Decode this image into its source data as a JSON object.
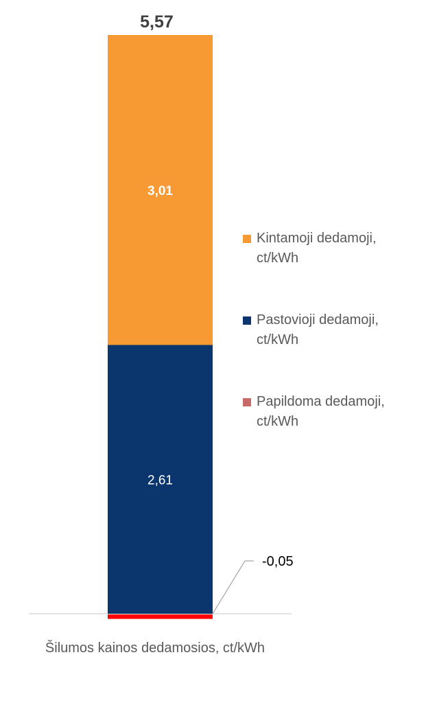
{
  "chart_data": {
    "type": "bar",
    "stacked": true,
    "categories": [
      "Šilumos kainos dedamosios, ct/kWh"
    ],
    "xlabel": "Šilumos kainos dedamosios, ct/kWh",
    "total_label": "5,57",
    "total": 5.57,
    "series": [
      {
        "name": "Kintamoji dedamoji, ct/kWh",
        "line1": "Kintamoji dedamoji,",
        "line2": "ct/kWh",
        "values": [
          3.01
        ],
        "label": "3,01",
        "color": "#F79A33",
        "legend_color": "#F79A33"
      },
      {
        "name": "Pastovioji dedamoji, ct/kWh",
        "line1": "Pastovioji dedamoji,",
        "line2": "ct/kWh",
        "values": [
          2.61
        ],
        "label": "2,61",
        "color": "#0A356D",
        "legend_color": "#0A356D"
      },
      {
        "name": "Papildoma dedamoji, ct/kWh",
        "line1": "Papildoma dedamoji,",
        "line2": "ct/kWh",
        "values": [
          -0.05
        ],
        "label": "-0,05",
        "color": "#FF0000",
        "legend_color": "#C96A6A"
      }
    ],
    "legend_position": "right",
    "grid": false
  }
}
